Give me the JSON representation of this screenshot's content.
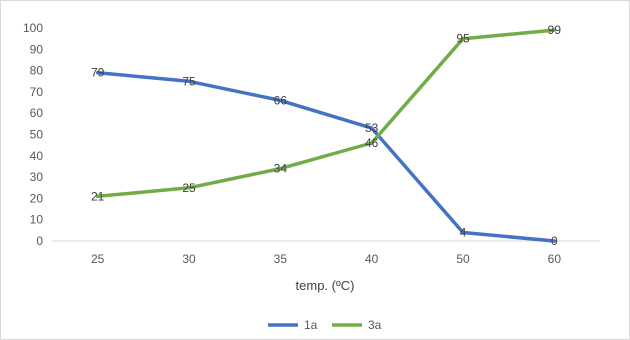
{
  "chart_data": {
    "type": "line",
    "categories": [
      "25",
      "30",
      "35",
      "40",
      "50",
      "60"
    ],
    "series": [
      {
        "name": "1a",
        "color": "#4472C4",
        "values": [
          79,
          75,
          66,
          53,
          4,
          0
        ]
      },
      {
        "name": "3a",
        "color": "#70AD47",
        "values": [
          21,
          25,
          34,
          46,
          95,
          99
        ]
      }
    ],
    "xlabel": "temp. (ºC)",
    "ylabel": "",
    "ylim": [
      0,
      100
    ],
    "yticks": [
      "0",
      "10",
      "20",
      "30",
      "40",
      "50",
      "60",
      "70",
      "80",
      "90",
      "100"
    ],
    "grid": false,
    "legend": "bottom"
  }
}
